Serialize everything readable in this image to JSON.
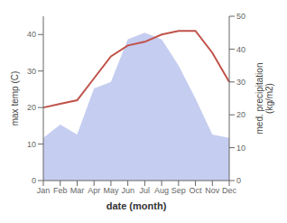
{
  "chart_data": {
    "type": "line",
    "xlabel": "date (month)",
    "ylabel": "max temp (C)",
    "y2label": "med. precipitation\n(kg/m2)",
    "categories": [
      "Jan",
      "Feb",
      "Mar",
      "Apr",
      "May",
      "Jun",
      "Jul",
      "Aug",
      "Sep",
      "Oct",
      "Nov",
      "Dec"
    ],
    "series": [
      {
        "type": "area",
        "axis": "y2",
        "color": "#c5cdf0",
        "values": [
          13,
          17,
          14,
          28,
          30,
          43,
          45,
          43,
          35,
          25,
          14,
          13
        ]
      },
      {
        "type": "line",
        "color": "#c0524a",
        "values": [
          20.0,
          21.0,
          22.0,
          28.0,
          34.0,
          37.0,
          38.0,
          40.0,
          41.0,
          41.0,
          35.0,
          27.0
        ]
      }
    ],
    "ylim": [
      0,
      45
    ],
    "yticks": [
      0,
      10,
      20,
      30,
      40
    ],
    "y2lim": [
      0,
      50
    ],
    "y2ticks": [
      0,
      10,
      20,
      30,
      40,
      50
    ],
    "grid": false
  }
}
